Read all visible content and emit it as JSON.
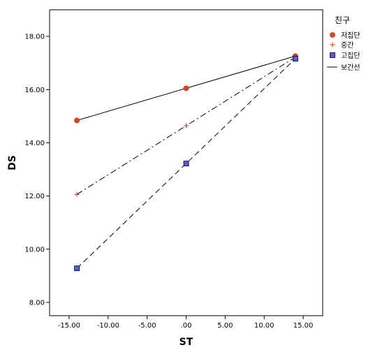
{
  "chart_data": {
    "type": "line",
    "xlabel": "ST",
    "ylabel": "DS",
    "xlim": [
      -17.5,
      17.5
    ],
    "ylim": [
      7.5,
      19.0
    ],
    "xticks": [
      -15,
      -10,
      -5,
      0,
      5,
      10,
      15
    ],
    "xtick_labels": [
      "-15.00",
      "-10.00",
      "-5.00",
      ".00",
      "5.00",
      "10.00",
      "15.00"
    ],
    "yticks": [
      8,
      10,
      12,
      14,
      16,
      18
    ],
    "ytick_labels": [
      "8.00",
      "10.00",
      "12.00",
      "14.00",
      "16.00",
      "18.00"
    ],
    "grid": false,
    "legend": {
      "title": "친구",
      "placement": "right",
      "fit_line_label": "보간선"
    },
    "series": [
      {
        "name": "저집단",
        "marker": "circle",
        "color": "#e8401c",
        "line_style": "solid",
        "points": [
          {
            "x": -14,
            "y": 14.84
          },
          {
            "x": 0,
            "y": 16.05
          },
          {
            "x": 14,
            "y": 17.26
          }
        ]
      },
      {
        "name": "중간",
        "marker": "plus",
        "color": "#e0262a",
        "line_style": "dashdot",
        "points": [
          {
            "x": -14,
            "y": 12.06
          },
          {
            "x": 0,
            "y": 14.64
          },
          {
            "x": 14,
            "y": 17.22
          }
        ]
      },
      {
        "name": "고집단",
        "marker": "square",
        "color": "#5a5ae8",
        "line_style": "dashed",
        "points": [
          {
            "x": -14,
            "y": 9.28
          },
          {
            "x": 0,
            "y": 13.22
          },
          {
            "x": 14,
            "y": 17.16
          }
        ]
      }
    ]
  }
}
